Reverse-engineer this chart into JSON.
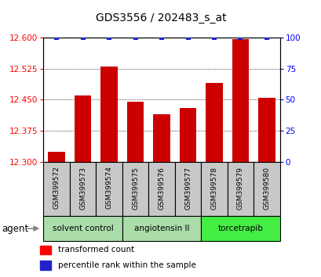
{
  "title": "GDS3556 / 202483_s_at",
  "samples": [
    "GSM399572",
    "GSM399573",
    "GSM399574",
    "GSM399575",
    "GSM399576",
    "GSM399577",
    "GSM399578",
    "GSM399579",
    "GSM399580"
  ],
  "transformed_counts": [
    12.325,
    12.46,
    12.53,
    12.445,
    12.415,
    12.43,
    12.49,
    12.595,
    12.455
  ],
  "percentile_ranks": [
    100,
    100,
    100,
    100,
    100,
    100,
    100,
    100,
    100
  ],
  "ylim_left": [
    12.3,
    12.6
  ],
  "ylim_right": [
    0,
    100
  ],
  "yticks_left": [
    12.3,
    12.375,
    12.45,
    12.525,
    12.6
  ],
  "yticks_right": [
    0,
    25,
    50,
    75,
    100
  ],
  "bar_color": "#CC0000",
  "blue_marker_color": "#2222CC",
  "sample_box_color": "#C8C8C8",
  "group_data": [
    {
      "label": "solvent control",
      "start": 0,
      "end": 2,
      "color": "#AADDAA"
    },
    {
      "label": "angiotensin II",
      "start": 3,
      "end": 5,
      "color": "#AADDAA"
    },
    {
      "label": "torcetrapib",
      "start": 6,
      "end": 8,
      "color": "#44EE44"
    }
  ],
  "agent_label": "agent",
  "legend_items": [
    {
      "label": "transformed count",
      "color": "#CC0000"
    },
    {
      "label": "percentile rank within the sample",
      "color": "#2222CC"
    }
  ]
}
